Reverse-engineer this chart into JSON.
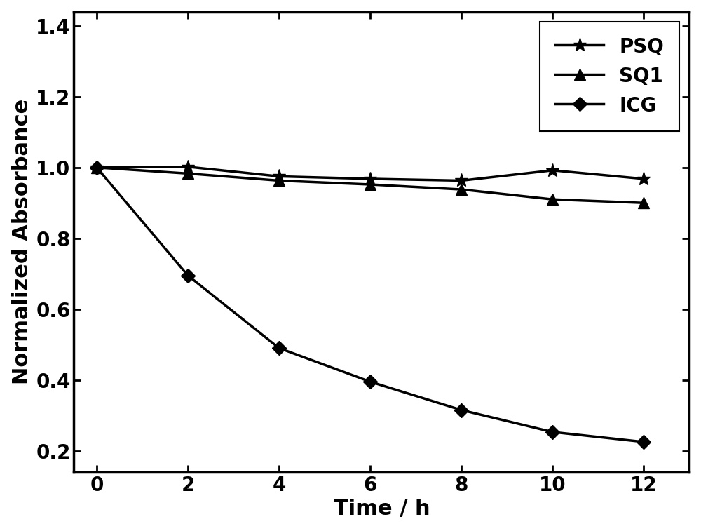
{
  "time": [
    0,
    2,
    4,
    6,
    8,
    10,
    12
  ],
  "PSQ": [
    1.0,
    1.002,
    0.975,
    0.968,
    0.963,
    0.992,
    0.968
  ],
  "SQ1": [
    1.0,
    0.983,
    0.963,
    0.952,
    0.938,
    0.91,
    0.9
  ],
  "ICG": [
    1.0,
    0.695,
    0.49,
    0.395,
    0.315,
    0.253,
    0.225
  ],
  "xlabel": "Time / h",
  "ylabel": "Normalized Absorbance",
  "xlim": [
    -0.5,
    13.0
  ],
  "ylim": [
    0.14,
    1.44
  ],
  "xticks": [
    0,
    2,
    4,
    6,
    8,
    10,
    12
  ],
  "yticks": [
    0.2,
    0.4,
    0.6,
    0.8,
    1.0,
    1.2,
    1.4
  ],
  "line_color": "#000000",
  "linewidth": 2.5,
  "markersize_star": 14,
  "markersize_tri": 11,
  "markersize_dia": 10,
  "legend_labels": [
    "PSQ",
    "SQ1",
    "ICG"
  ],
  "legend_loc": "upper right",
  "background_color": "#ffffff",
  "tick_fontsize": 20,
  "label_fontsize": 22,
  "legend_fontsize": 20,
  "spine_linewidth": 2.5
}
